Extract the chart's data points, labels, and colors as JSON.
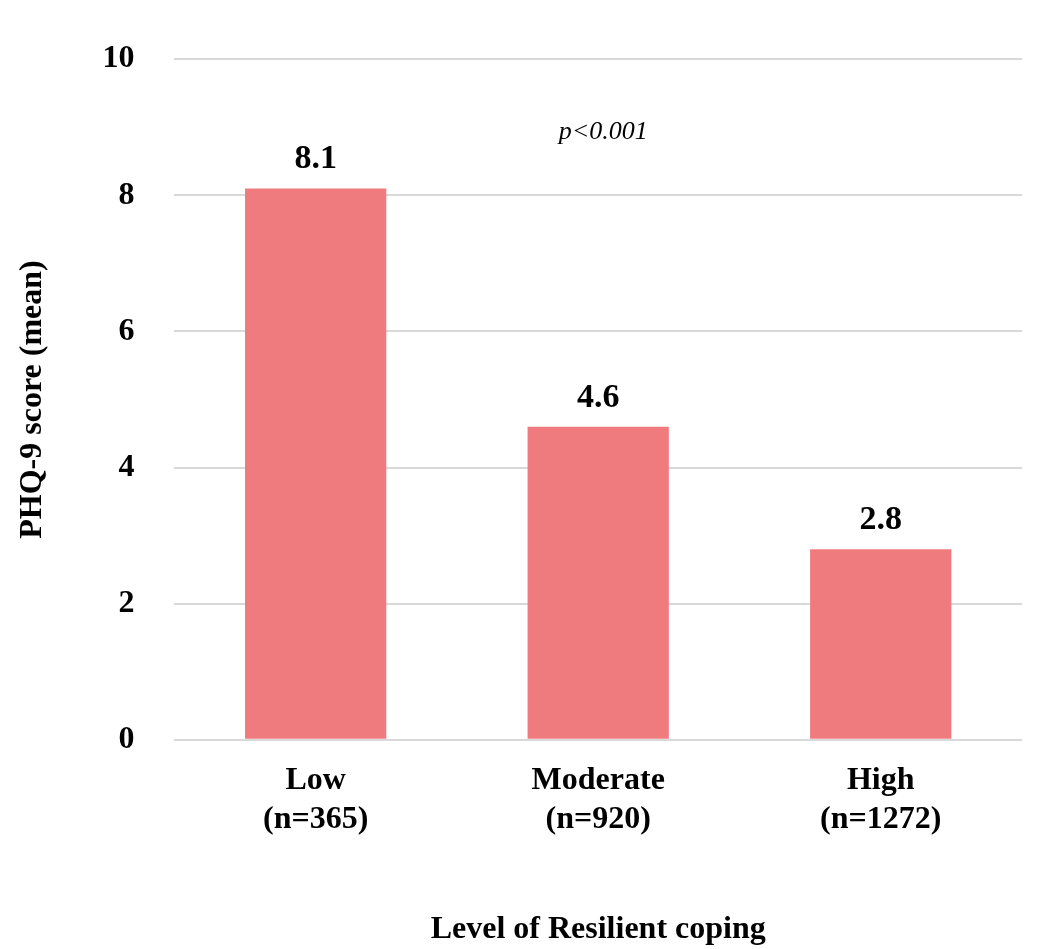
{
  "chart_data": {
    "type": "bar",
    "xlabel": "Level of Resilient coping",
    "ylabel": "PHQ-9 score (mean)",
    "categories": [
      "Low\n(n=365)",
      "Moderate\n(n=920)",
      "High\n(n=1272)"
    ],
    "values": [
      8.1,
      4.6,
      2.8
    ],
    "color": "#f07b7e",
    "ylim": [
      0,
      10
    ],
    "yticks": [
      0,
      2,
      4,
      6,
      8,
      10
    ],
    "grid": "y",
    "legend": false,
    "data_labels": true,
    "annotations": [
      "p<0.001"
    ]
  }
}
